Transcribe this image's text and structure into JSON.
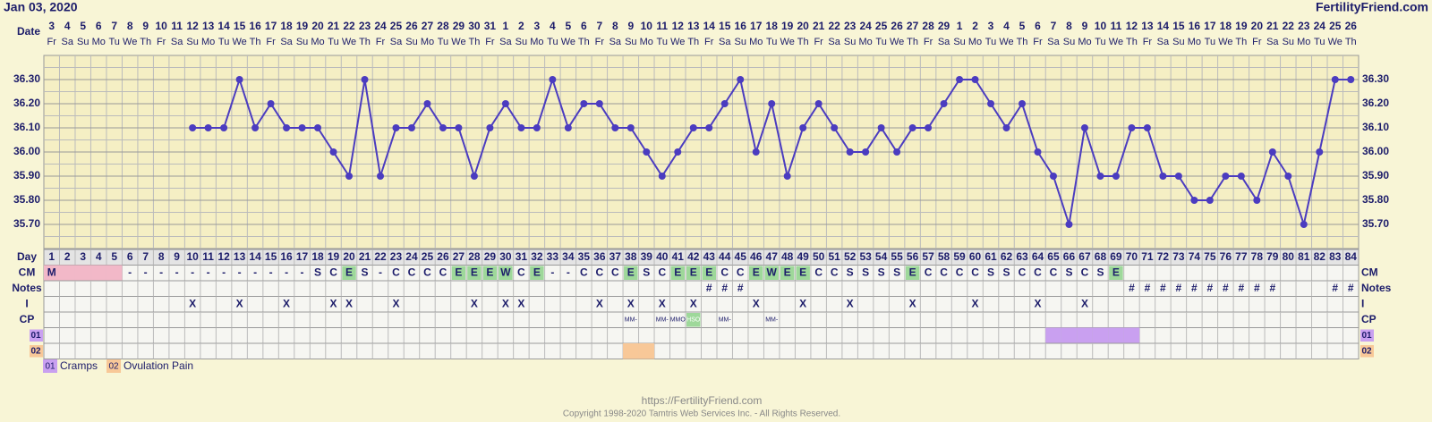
{
  "header": {
    "date": "Jan 03, 2020",
    "site": "FertilityFriend.com"
  },
  "chart_data": {
    "type": "line",
    "date_label": "Date",
    "dates": [
      3,
      4,
      5,
      6,
      7,
      8,
      9,
      10,
      11,
      12,
      13,
      14,
      15,
      16,
      17,
      18,
      19,
      20,
      21,
      22,
      23,
      24,
      25,
      26,
      27,
      28,
      29,
      30,
      31,
      1,
      2,
      3,
      4,
      5,
      6,
      7,
      8,
      9,
      10,
      11,
      12,
      13,
      14,
      15,
      16,
      17,
      18,
      19,
      20,
      21,
      22,
      23,
      24,
      25,
      26,
      27,
      28,
      29,
      1,
      2,
      3,
      4,
      5,
      6,
      7,
      8,
      9,
      10,
      11,
      12,
      13,
      14,
      15,
      16,
      17,
      18,
      19,
      20,
      21,
      22,
      23,
      24,
      25,
      26
    ],
    "weekdays": [
      "Fr",
      "Sa",
      "Su",
      "Mo",
      "Tu",
      "We",
      "Th",
      "Fr",
      "Sa",
      "Su",
      "Mo",
      "Tu",
      "We",
      "Th",
      "Fr",
      "Sa",
      "Su",
      "Mo",
      "Tu",
      "We",
      "Th",
      "Fr",
      "Sa",
      "Su",
      "Mo",
      "Tu",
      "We",
      "Th",
      "Fr",
      "Sa",
      "Su",
      "Mo",
      "Tu",
      "We",
      "Th",
      "Fr",
      "Sa",
      "Su",
      "Mo",
      "Tu",
      "We",
      "Th",
      "Fr",
      "Sa",
      "Su",
      "Mo",
      "Tu",
      "We",
      "Th",
      "Fr",
      "Sa",
      "Su",
      "Mo",
      "Tu",
      "We",
      "Th",
      "Fr",
      "Sa",
      "Su",
      "Mo",
      "Tu",
      "We",
      "Th",
      "Fr",
      "Sa",
      "Su",
      "Mo",
      "Tu",
      "We",
      "Th",
      "Fr",
      "Sa",
      "Su",
      "Mo",
      "Tu",
      "We",
      "Th",
      "Fr",
      "Sa",
      "Su",
      "Mo",
      "Tu",
      "We",
      "Th"
    ],
    "day_label": "Day",
    "categories": [
      1,
      2,
      3,
      4,
      5,
      6,
      7,
      8,
      9,
      10,
      11,
      12,
      13,
      14,
      15,
      16,
      17,
      18,
      19,
      20,
      21,
      22,
      23,
      24,
      25,
      26,
      27,
      28,
      29,
      30,
      31,
      32,
      33,
      34,
      35,
      36,
      37,
      38,
      39,
      40,
      41,
      42,
      43,
      44,
      45,
      46,
      47,
      48,
      49,
      50,
      51,
      52,
      53,
      54,
      55,
      56,
      57,
      58,
      59,
      60,
      61,
      62,
      63,
      64,
      65,
      66,
      67,
      68,
      69,
      70,
      71,
      72,
      73,
      74,
      75,
      76,
      77,
      78,
      79,
      80,
      81,
      82,
      83,
      84
    ],
    "series": [
      {
        "color": "#4b3cc0",
        "values": [
          null,
          null,
          null,
          null,
          null,
          null,
          null,
          null,
          null,
          36.1,
          36.1,
          36.1,
          36.3,
          36.1,
          36.2,
          36.1,
          36.1,
          36.1,
          36.0,
          35.9,
          36.3,
          35.9,
          36.1,
          36.1,
          36.2,
          36.1,
          36.1,
          35.9,
          36.1,
          36.2,
          36.1,
          36.1,
          36.3,
          36.1,
          36.2,
          36.2,
          36.1,
          36.1,
          36.0,
          35.9,
          36.0,
          36.1,
          36.1,
          36.2,
          36.3,
          36.0,
          36.2,
          35.9,
          36.1,
          36.2,
          36.1,
          36.0,
          36.0,
          36.1,
          36.0,
          36.1,
          36.1,
          36.2,
          36.3,
          36.3,
          36.2,
          36.1,
          36.2,
          36.0,
          35.9,
          35.7,
          36.1,
          35.9,
          35.9,
          36.1,
          36.1,
          35.9,
          35.9,
          35.8,
          35.8,
          35.9,
          35.9,
          35.8,
          36.0,
          35.9,
          35.7,
          36.0,
          36.3,
          36.3
        ]
      }
    ],
    "ylim": [
      35.6,
      36.4
    ],
    "yticks": [
      {
        "value": 35.7,
        "label": "35.70"
      },
      {
        "value": 35.8,
        "label": "35.80"
      },
      {
        "value": 35.9,
        "label": "35.90"
      },
      {
        "value": 36.0,
        "label": "36.00"
      },
      {
        "value": 36.1,
        "label": "36.10"
      },
      {
        "value": 36.2,
        "label": "36.20"
      },
      {
        "value": 36.3,
        "label": "36.30"
      }
    ],
    "grid": true
  },
  "rows": {
    "cm": {
      "label": "CM",
      "period_days": [
        1,
        2,
        3,
        4,
        5
      ],
      "green_values": [
        "E",
        "W"
      ],
      "values": [
        "M",
        null,
        null,
        null,
        null,
        "-",
        "-",
        "-",
        "-",
        "-",
        "-",
        "-",
        "-",
        "-",
        "-",
        "-",
        "-",
        "S",
        "C",
        "E",
        "S",
        "-",
        "C",
        "C",
        "C",
        "C",
        "E",
        "E",
        "E",
        "W",
        "C",
        "E",
        "-",
        "-",
        "C",
        "C",
        "C",
        "E",
        "S",
        "C",
        "E",
        "E",
        "E",
        "C",
        "C",
        "E",
        "W",
        "E",
        "E",
        "C",
        "C",
        "S",
        "S",
        "S",
        "S",
        "E",
        "C",
        "C",
        "C",
        "C",
        "S",
        "S",
        "C",
        "C",
        "C",
        "S",
        "C",
        "S",
        "E",
        null,
        null,
        null,
        null,
        null,
        null,
        null,
        null,
        null,
        null,
        null,
        null,
        null,
        null,
        null
      ]
    },
    "notes": {
      "label": "Notes",
      "values": [
        null,
        null,
        null,
        null,
        null,
        null,
        null,
        null,
        null,
        null,
        null,
        null,
        null,
        null,
        null,
        null,
        null,
        null,
        null,
        null,
        null,
        null,
        null,
        null,
        null,
        null,
        null,
        null,
        null,
        null,
        null,
        null,
        null,
        null,
        null,
        null,
        null,
        null,
        null,
        null,
        null,
        null,
        "#",
        "#",
        "#",
        null,
        null,
        null,
        null,
        null,
        null,
        null,
        null,
        null,
        null,
        null,
        null,
        null,
        null,
        null,
        null,
        null,
        null,
        null,
        null,
        null,
        null,
        null,
        null,
        "#",
        "#",
        "#",
        "#",
        "#",
        "#",
        "#",
        "#",
        "#",
        "#",
        null,
        null,
        null,
        "#",
        "#"
      ]
    },
    "intercourse": {
      "label": "I",
      "values": [
        null,
        null,
        null,
        null,
        null,
        null,
        null,
        null,
        null,
        "X",
        null,
        null,
        "X",
        null,
        null,
        "X",
        null,
        null,
        "X",
        "X",
        null,
        null,
        "X",
        null,
        null,
        null,
        null,
        "X",
        null,
        "X",
        "X",
        null,
        null,
        null,
        null,
        "X",
        null,
        "X",
        null,
        "X",
        null,
        "X",
        null,
        null,
        null,
        "X",
        null,
        null,
        "X",
        null,
        null,
        "X",
        null,
        null,
        null,
        "X",
        null,
        null,
        null,
        "X",
        null,
        null,
        null,
        "X",
        null,
        null,
        "X",
        null,
        null,
        null,
        null,
        null,
        null,
        null,
        null,
        null,
        null,
        null,
        null,
        null,
        null,
        null,
        null,
        null
      ]
    },
    "cp": {
      "label": "CP",
      "green_values": [
        "HSO"
      ],
      "values": [
        null,
        null,
        null,
        null,
        null,
        null,
        null,
        null,
        null,
        null,
        null,
        null,
        null,
        null,
        null,
        null,
        null,
        null,
        null,
        null,
        null,
        null,
        null,
        null,
        null,
        null,
        null,
        null,
        null,
        null,
        null,
        null,
        null,
        null,
        null,
        null,
        null,
        "MM-",
        null,
        "MM-",
        "MMO",
        "HSO",
        null,
        "MM-",
        null,
        null,
        "MM-",
        null,
        null,
        null,
        null,
        null,
        null,
        null,
        null,
        null,
        null,
        null,
        null,
        null,
        null,
        null,
        null,
        null,
        null,
        null,
        null,
        null,
        null,
        null,
        null,
        null,
        null,
        null,
        null,
        null,
        null,
        null,
        null,
        null,
        null,
        null,
        null,
        null
      ]
    },
    "symptom1": {
      "label": "01",
      "name": "Cramps",
      "color": "#c9a0f0",
      "days": [
        65,
        66,
        67,
        68,
        69,
        70
      ]
    },
    "symptom2": {
      "label": "02",
      "name": "Ovulation Pain",
      "color": "#f8c898",
      "days": [
        38,
        39
      ]
    }
  },
  "footer": {
    "url": "https://FertilityFriend.com",
    "copyright": "Copyright 1998-2020 Tamtris Web Services Inc. - All Rights Reserved."
  }
}
